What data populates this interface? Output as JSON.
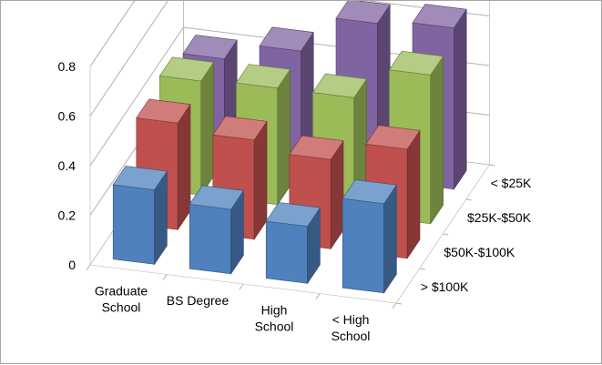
{
  "chart_data": {
    "type": "bar",
    "variant": "3d-column",
    "title": "",
    "ylabel": "",
    "xlabel": "",
    "ylim": [
      0,
      0.8
    ],
    "yticks": [
      "0",
      "0.2",
      "0.4",
      "0.6",
      "0.8"
    ],
    "grid": true,
    "categories": [
      [
        "Graduate",
        "School"
      ],
      [
        "BS Degree"
      ],
      [
        "High",
        "School"
      ],
      [
        "< High",
        "School"
      ]
    ],
    "series": [
      {
        "name": "> $100K",
        "color": "#4f81bd",
        "values": [
          0.3,
          0.26,
          0.23,
          0.36
        ]
      },
      {
        "name": "$50K-$100K",
        "color": "#c0504d",
        "values": [
          0.43,
          0.4,
          0.36,
          0.44
        ]
      },
      {
        "name": "$25K-$50K",
        "color": "#9bbb59",
        "values": [
          0.46,
          0.47,
          0.47,
          0.6
        ]
      },
      {
        "name": "< $25K",
        "color": "#8064a2",
        "values": [
          0.41,
          0.48,
          0.63,
          0.65
        ]
      }
    ]
  }
}
